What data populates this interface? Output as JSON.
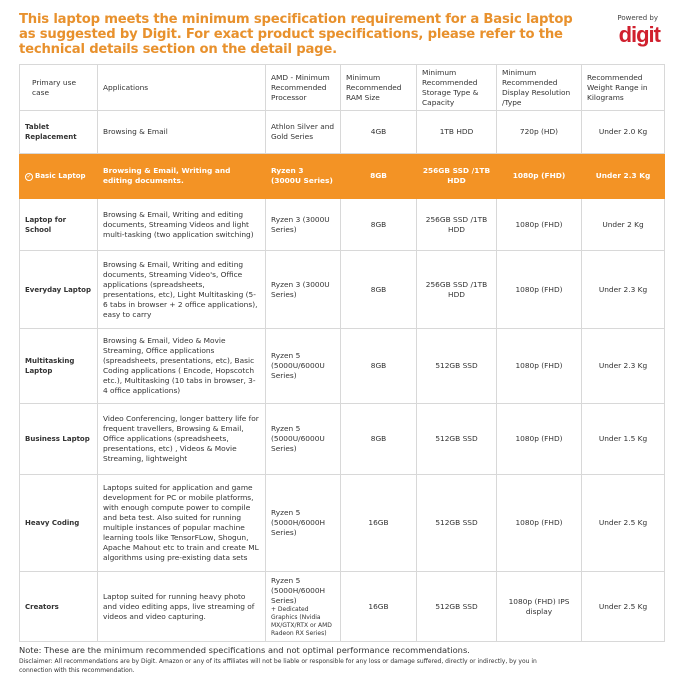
{
  "title": "This laptop meets the minimum specification requirement for a Basic laptop as suggested by Digit. For exact product specifications, please refer to the technical details section on the detail page.",
  "powered_by": "Powered by",
  "logo": "digit",
  "headers": [
    "Primary use case",
    "Applications",
    "AMD - Minimum Recommended Processor",
    "Minimum Recommended RAM Size",
    "Minimum Recommended Storage Type & Capacity",
    "Minimum Recommended Display Resolution /Type",
    "Recommended Weight Range in Kilograms"
  ],
  "rows": [
    {
      "use": "Tablet Replacement",
      "apps": "Browsing & Email",
      "cpu": "Athlon Silver and Gold Series",
      "cpu_extra": "",
      "ram": "4GB",
      "storage": "1TB HDD",
      "display": "720p (HD)",
      "weight": "Under 2.0 Kg"
    },
    {
      "use": "Basic Laptop",
      "apps": "Browsing & Email, Writing and editing documents.",
      "cpu": "Ryzen 3 (3000U Series)",
      "cpu_extra": "",
      "ram": "8GB",
      "storage": "256GB SSD /1TB HDD",
      "display": "1080p (FHD)",
      "weight": "Under 2.3 Kg"
    },
    {
      "use": "Laptop for School",
      "apps": "Browsing & Email, Writing and editing documents, Streaming Videos and light multi-tasking (two application switching)",
      "cpu": "Ryzen 3 (3000U Series)",
      "cpu_extra": "",
      "ram": "8GB",
      "storage": "256GB SSD /1TB HDD",
      "display": "1080p (FHD)",
      "weight": "Under 2 Kg"
    },
    {
      "use": "Everyday Laptop",
      "apps": "Browsing & Email, Writing and editing documents, Streaming Video's, Office applications (spreadsheets, presentations, etc), Light Multitasking (5-6 tabs in browser + 2 office applications), easy to carry",
      "cpu": "Ryzen 3 (3000U Series)",
      "cpu_extra": "",
      "ram": "8GB",
      "storage": "256GB SSD /1TB HDD",
      "display": "1080p (FHD)",
      "weight": "Under 2.3 Kg"
    },
    {
      "use": "Multitasking Laptop",
      "apps": "Browsing & Email, Video & Movie Streaming, Office applications (spreadsheets, presentations, etc), Basic Coding applications ( Encode, Hopscotch etc.), Multitasking (10 tabs in browser, 3-4 office applications)",
      "cpu": "Ryzen 5 (5000U/6000U Series)",
      "cpu_extra": "",
      "ram": "8GB",
      "storage": "512GB SSD",
      "display": "1080p (FHD)",
      "weight": "Under 2.3 Kg"
    },
    {
      "use": "Business Laptop",
      "apps": "Video Conferencing, longer battery life for frequent travellers, Browsing & Email, Office applications (spreadsheets, presentations, etc) , Videos & Movie Streaming, lightweight",
      "cpu": "Ryzen 5 (5000U/6000U Series)",
      "cpu_extra": "",
      "ram": "8GB",
      "storage": "512GB SSD",
      "display": "1080p (FHD)",
      "weight": "Under 1.5 Kg"
    },
    {
      "use": "Heavy Coding",
      "apps": "Laptops suited for application and game development for PC or mobile platforms, with enough compute power to compile and beta test. Also suited for running multiple instances of popular machine learning tools like TensorFLow, Shogun, Apache Mahout etc to train and create ML algorithms using pre-existing data sets",
      "cpu": "Ryzen 5 (5000H/6000H Series)",
      "cpu_extra": "",
      "ram": "16GB",
      "storage": "512GB SSD",
      "display": "1080p (FHD)",
      "weight": "Under 2.5 Kg"
    },
    {
      "use": "Creators",
      "apps": "Laptop suited for running heavy photo and video editing apps, live streaming of videos and video capturing.",
      "cpu": "Ryzen 5 (5000H/6000H Series)",
      "cpu_extra": "+ Dedicated Graphics (Nvidia MX/GTX/RTX or AMD Radeon RX Series)",
      "ram": "16GB",
      "storage": "512GB SSD",
      "display": "1080p (FHD) IPS display",
      "weight": "Under 2.5 Kg"
    }
  ],
  "note": "Note: These are the minimum recommended specifications and not optimal performance recommendations.",
  "disclaimer": "Disclaimer: All recommendations are by Digit. Amazon or any of its affiliates will not be liable or responsible for any loss or damage suffered, directly or indirectly, by you in connection with this recommendation."
}
